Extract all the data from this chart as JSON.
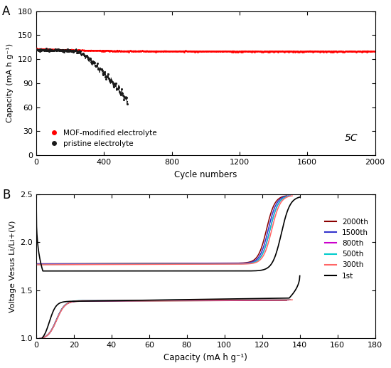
{
  "panel_A": {
    "title_label": "A",
    "xlabel": "Cycle numbers",
    "ylabel": "Capacity (mA h g⁻¹)",
    "xlim": [
      0,
      2000
    ],
    "ylim": [
      0,
      180
    ],
    "yticks": [
      0,
      30,
      60,
      90,
      120,
      150,
      180
    ],
    "xticks": [
      0,
      400,
      800,
      1200,
      1600,
      2000
    ],
    "mof_color": "#ff0000",
    "pristine_color": "#1a1a1a",
    "annotation": "5C",
    "legend_mof": "MOF-modified electrolyte",
    "legend_pristine": "pristine electrolyte"
  },
  "panel_B": {
    "title_label": "B",
    "xlabel": "Capacity (mA h g⁻¹)",
    "ylabel": "Voltage Vesus Li/Li+(V)",
    "xlim": [
      0,
      180
    ],
    "ylim": [
      1.0,
      2.5
    ],
    "xticks": [
      0,
      20,
      40,
      60,
      80,
      100,
      120,
      140,
      160,
      180
    ],
    "yticks": [
      1.0,
      1.5,
      2.0,
      2.5
    ],
    "cycles": [
      "2000th",
      "1500th",
      "800th",
      "500th",
      "300th",
      "1st"
    ],
    "cycle_colors": [
      "#8b0000",
      "#3333cc",
      "#cc00cc",
      "#00cccc",
      "#ff6666",
      "#000000"
    ]
  }
}
